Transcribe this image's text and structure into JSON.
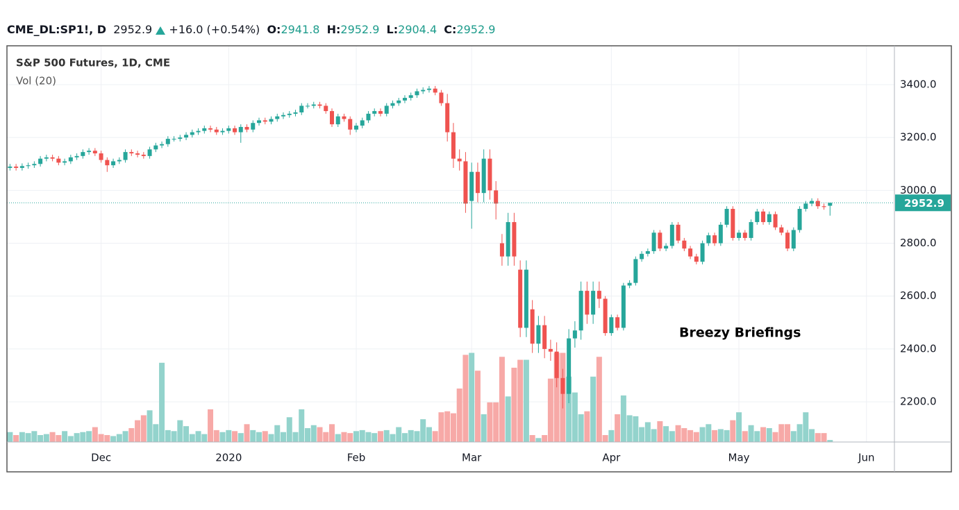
{
  "header": {
    "symbol": "CME_DL:SP1!, D",
    "change_label": "+16.0 (+0.54%)",
    "ohlc_labels": [
      "O:",
      "H:",
      "L:",
      "C:"
    ]
  },
  "chart_data": {
    "type": "candlestick",
    "title": "S&P 500 Futures, 1D, CME",
    "volume_title": "Vol (20)",
    "annotation": "Breezy Briefings",
    "up_color": "#26a69a",
    "down_color": "#ef5350",
    "up_volume_color": "#93d3cc",
    "down_volume_color": "#f7a9a7",
    "xlim": [
      -0.5,
      145.6
    ],
    "xticks": [
      {
        "value": 15,
        "label": "Dec"
      },
      {
        "value": 36,
        "label": "2020"
      },
      {
        "value": 57,
        "label": "Feb"
      },
      {
        "value": 76,
        "label": "Mar"
      },
      {
        "value": 99,
        "label": "Apr"
      },
      {
        "value": 120,
        "label": "May"
      },
      {
        "value": 141,
        "label": "Jun"
      }
    ],
    "ylim": [
      2048,
      3547
    ],
    "yticks": [
      {
        "value": 2200,
        "label": "2200.0"
      },
      {
        "value": 2400,
        "label": "2400.0"
      },
      {
        "value": 2600,
        "label": "2600.0"
      },
      {
        "value": 2800,
        "label": "2800.0"
      },
      {
        "value": 3000,
        "label": "3000.0"
      },
      {
        "value": 3200,
        "label": "3200.0"
      },
      {
        "value": 3400,
        "label": "3400.0"
      }
    ],
    "volume_lim": [
      0,
      20
    ],
    "grid": true,
    "open": [
      3085,
      3090,
      3085,
      3092,
      3095,
      3100,
      3120,
      3125,
      3120,
      3105,
      3110,
      3125,
      3130,
      3145,
      3150,
      3140,
      3115,
      3095,
      3110,
      3115,
      3145,
      3140,
      3135,
      3130,
      3155,
      3170,
      3175,
      3195,
      3195,
      3200,
      3210,
      3220,
      3225,
      3235,
      3230,
      3220,
      3225,
      3235,
      3220,
      3240,
      3230,
      3255,
      3265,
      3260,
      3270,
      3280,
      3285,
      3290,
      3295,
      3320,
      3320,
      3325,
      3320,
      3300,
      3250,
      3280,
      3270,
      3230,
      3245,
      3265,
      3290,
      3300,
      3290,
      3320,
      3330,
      3340,
      3350,
      3360,
      3375,
      3380,
      3385,
      3370,
      3330,
      3220,
      3120,
      3110,
      2960,
      3070,
      2990,
      3120,
      3000,
      2800,
      2750,
      2880,
      2700,
      2480,
      2550,
      2420,
      2490,
      2400,
      2390,
      2290,
      2230,
      2440,
      2470,
      2620,
      2530,
      2620,
      2590,
      2460,
      2520,
      2480,
      2640,
      2650,
      2740,
      2760,
      2770,
      2840,
      2780,
      2790,
      2870,
      2810,
      2780,
      2750,
      2730,
      2800,
      2830,
      2800,
      2870,
      2930,
      2820,
      2840,
      2820,
      2880,
      2920,
      2880,
      2910,
      2860,
      2840,
      2780,
      2850,
      2930,
      2950,
      2960,
      2940,
      2941.8
    ],
    "high": [
      3100,
      3100,
      3102,
      3105,
      3110,
      3130,
      3135,
      3135,
      3130,
      3120,
      3135,
      3140,
      3155,
      3160,
      3160,
      3150,
      3125,
      3120,
      3125,
      3155,
      3155,
      3150,
      3145,
      3165,
      3180,
      3185,
      3205,
      3205,
      3210,
      3220,
      3230,
      3235,
      3245,
      3245,
      3240,
      3235,
      3245,
      3245,
      3250,
      3250,
      3265,
      3275,
      3275,
      3280,
      3290,
      3295,
      3300,
      3305,
      3330,
      3330,
      3335,
      3335,
      3330,
      3310,
      3290,
      3290,
      3280,
      3255,
      3275,
      3300,
      3310,
      3310,
      3330,
      3340,
      3350,
      3360,
      3370,
      3385,
      3390,
      3395,
      3395,
      3380,
      3365,
      3255,
      3155,
      3145,
      3105,
      3105,
      3155,
      3155,
      3035,
      2835,
      2915,
      2915,
      2735,
      2735,
      2585,
      2525,
      2525,
      2435,
      2425,
      2325,
      2475,
      2505,
      2655,
      2655,
      2655,
      2655,
      2600,
      2530,
      2530,
      2650,
      2660,
      2750,
      2770,
      2780,
      2850,
      2850,
      2800,
      2880,
      2880,
      2820,
      2790,
      2760,
      2810,
      2840,
      2840,
      2880,
      2940,
      2940,
      2850,
      2850,
      2890,
      2930,
      2930,
      2920,
      2920,
      2870,
      2850,
      2860,
      2940,
      2960,
      2970,
      2970,
      2950,
      2952.9
    ],
    "low": [
      3075,
      3075,
      3075,
      3082,
      3085,
      3090,
      3110,
      3110,
      3095,
      3095,
      3100,
      3115,
      3120,
      3135,
      3130,
      3105,
      3070,
      3085,
      3100,
      3105,
      3130,
      3125,
      3120,
      3120,
      3145,
      3160,
      3165,
      3185,
      3185,
      3190,
      3200,
      3210,
      3215,
      3220,
      3210,
      3210,
      3215,
      3210,
      3180,
      3220,
      3220,
      3245,
      3250,
      3250,
      3260,
      3270,
      3275,
      3280,
      3285,
      3310,
      3310,
      3310,
      3290,
      3240,
      3240,
      3260,
      3210,
      3220,
      3235,
      3255,
      3280,
      3280,
      3280,
      3310,
      3320,
      3330,
      3340,
      3350,
      3365,
      3370,
      3360,
      3320,
      3185,
      3085,
      3075,
      2915,
      2855,
      2955,
      2955,
      2965,
      2890,
      2715,
      2715,
      2715,
      2445,
      2445,
      2385,
      2385,
      2365,
      2355,
      2255,
      2175,
      2195,
      2405,
      2435,
      2495,
      2495,
      2555,
      2450,
      2450,
      2470,
      2470,
      2630,
      2640,
      2730,
      2750,
      2760,
      2770,
      2770,
      2780,
      2800,
      2770,
      2740,
      2720,
      2720,
      2790,
      2790,
      2790,
      2860,
      2810,
      2810,
      2810,
      2810,
      2870,
      2870,
      2870,
      2850,
      2830,
      2770,
      2770,
      2840,
      2920,
      2940,
      2930,
      2926.9,
      2904.4
    ],
    "close": [
      3090,
      3085,
      3092,
      3095,
      3100,
      3120,
      3125,
      3120,
      3105,
      3110,
      3125,
      3130,
      3145,
      3150,
      3140,
      3115,
      3095,
      3110,
      3115,
      3145,
      3140,
      3135,
      3130,
      3155,
      3170,
      3175,
      3195,
      3195,
      3200,
      3210,
      3220,
      3225,
      3235,
      3230,
      3220,
      3225,
      3235,
      3220,
      3240,
      3230,
      3255,
      3265,
      3260,
      3270,
      3280,
      3285,
      3290,
      3295,
      3320,
      3320,
      3325,
      3320,
      3300,
      3250,
      3280,
      3270,
      3230,
      3245,
      3265,
      3290,
      3300,
      3290,
      3320,
      3330,
      3340,
      3350,
      3360,
      3375,
      3380,
      3385,
      3370,
      3330,
      3220,
      3120,
      3110,
      2950,
      3070,
      2990,
      3120,
      3000,
      2950,
      2750,
      2880,
      2750,
      2480,
      2700,
      2420,
      2490,
      2400,
      2390,
      2290,
      2230,
      2440,
      2470,
      2620,
      2530,
      2620,
      2590,
      2460,
      2520,
      2480,
      2640,
      2650,
      2740,
      2760,
      2770,
      2840,
      2780,
      2790,
      2870,
      2810,
      2780,
      2750,
      2730,
      2800,
      2830,
      2800,
      2870,
      2930,
      2820,
      2840,
      2820,
      2880,
      2920,
      2880,
      2910,
      2860,
      2840,
      2780,
      2850,
      2930,
      2950,
      2960,
      2940,
      2936.9,
      2952.9
    ],
    "volume": [
      0.5,
      0.35,
      0.5,
      0.45,
      0.55,
      0.35,
      0.4,
      0.5,
      0.35,
      0.55,
      0.3,
      0.45,
      0.5,
      0.55,
      0.75,
      0.4,
      0.35,
      0.3,
      0.4,
      0.55,
      0.7,
      1.1,
      1.35,
      1.6,
      0.9,
      4.0,
      0.6,
      0.55,
      1.1,
      0.8,
      0.4,
      0.55,
      0.4,
      1.65,
      0.6,
      0.5,
      0.6,
      0.55,
      0.45,
      0.9,
      0.6,
      0.5,
      0.55,
      0.4,
      0.85,
      0.5,
      1.25,
      0.5,
      1.65,
      0.7,
      0.85,
      0.75,
      0.5,
      0.9,
      0.4,
      0.5,
      0.45,
      0.55,
      0.6,
      0.5,
      0.45,
      0.55,
      0.6,
      0.4,
      0.75,
      0.45,
      0.6,
      0.55,
      1.15,
      0.75,
      0.55,
      1.5,
      1.55,
      1.45,
      2.7,
      4.4,
      4.5,
      3.6,
      1.4,
      2.0,
      2.0,
      4.3,
      2.3,
      3.75,
      4.15,
      4.15,
      0.35,
      0.2,
      0.35,
      3.2,
      4.5,
      4.5,
      3.3,
      2.5,
      1.4,
      1.55,
      3.3,
      4.3,
      0.35,
      0.6,
      1.4,
      2.35,
      1.35,
      1.3,
      0.75,
      1.0,
      0.65,
      1.05,
      0.8,
      0.55,
      0.85,
      0.7,
      0.6,
      0.5,
      0.75,
      0.9,
      0.6,
      0.65,
      0.6,
      1.1,
      1.5,
      0.55,
      0.85,
      0.55,
      0.75,
      0.7,
      0.5,
      0.9,
      0.9,
      0.55,
      0.9,
      1.5,
      0.65,
      0.45,
      0.45,
      0.1
    ]
  }
}
